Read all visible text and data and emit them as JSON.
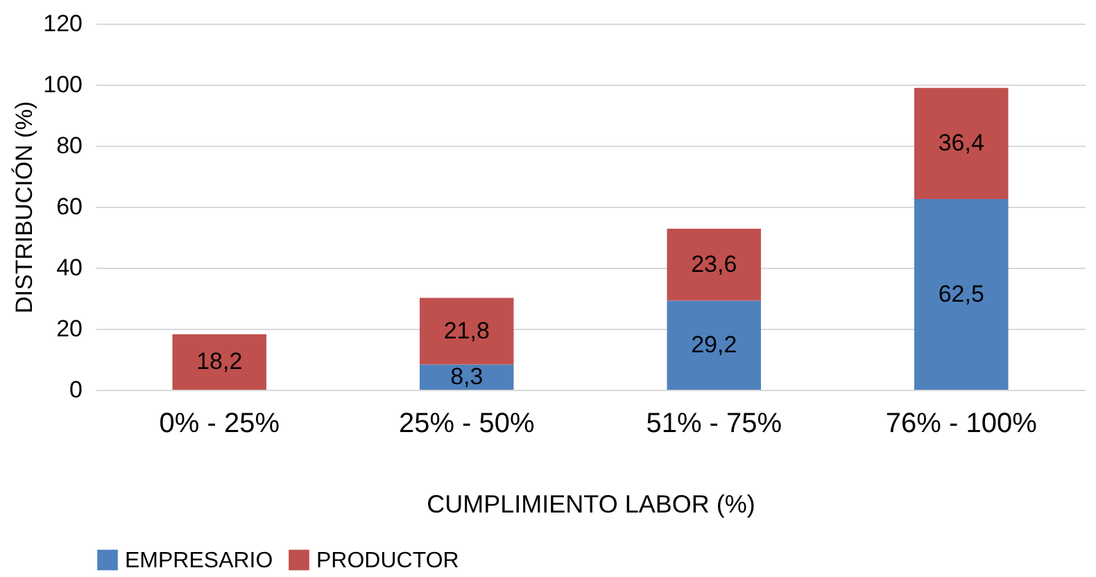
{
  "chart_data": {
    "type": "bar",
    "stacked": true,
    "xlabel": "CUMPLIMIENTO LABOR (%)",
    "ylabel": "DISTRIBUCIÓN (%)",
    "categories": [
      "0%  -  25%",
      "25%  -  50%",
      "51%  -  75%",
      "76%  -  100%"
    ],
    "series": [
      {
        "name": "EMPRESARIO",
        "color": "#4f81bd",
        "values": [
          null,
          8.3,
          29.2,
          62.5
        ],
        "value_labels": [
          null,
          "8,3",
          "29,2",
          "62,5"
        ]
      },
      {
        "name": "PRODUCTOR",
        "color": "#c0504d",
        "values": [
          18.2,
          21.8,
          23.6,
          36.4
        ],
        "value_labels": [
          "18,2",
          "21,8",
          "23,6",
          "36,4"
        ]
      }
    ],
    "ylim": [
      0,
      120
    ],
    "yticks": [
      0,
      20,
      40,
      60,
      80,
      100,
      120
    ],
    "grid": "y",
    "legend": "bottom"
  }
}
